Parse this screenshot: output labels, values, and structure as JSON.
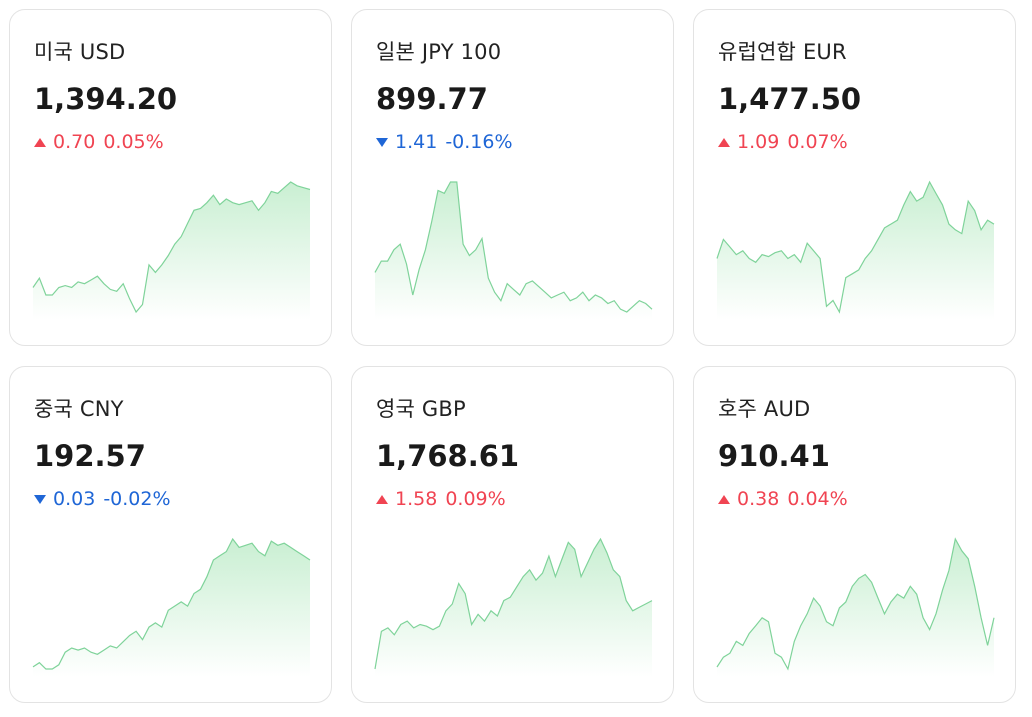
{
  "currencies": [
    {
      "name": "미국 USD",
      "price": "1,394.20",
      "direction": "up",
      "change": "0.70",
      "percent": "0.05%",
      "spark": [
        10,
        15,
        6,
        6,
        10,
        11,
        10,
        13,
        12,
        14,
        16,
        12,
        9,
        8,
        12,
        4,
        -3,
        1,
        22,
        18,
        22,
        27,
        33,
        37,
        44,
        51,
        52,
        55,
        59,
        54,
        57,
        55,
        54,
        55,
        56,
        51,
        55,
        61,
        60,
        63,
        66,
        64,
        63,
        62
      ]
    },
    {
      "name": "일본 JPY 100",
      "price": "899.77",
      "direction": "down",
      "change": "1.41",
      "percent": "-0.16%",
      "spark": [
        22,
        26,
        26,
        30,
        32,
        25,
        14,
        23,
        30,
        40,
        51,
        50,
        54,
        54,
        32,
        28,
        30,
        34,
        20,
        15,
        12,
        18,
        16,
        14,
        18,
        19,
        17,
        15,
        13,
        14,
        15,
        12,
        13,
        15,
        12,
        14,
        13,
        11,
        12,
        9,
        8,
        10,
        12,
        11,
        9
      ]
    },
    {
      "name": "유럽연합 EUR",
      "price": "1,477.50",
      "direction": "up",
      "change": "1.09",
      "percent": "0.07%",
      "spark": [
        30,
        40,
        36,
        32,
        34,
        30,
        28,
        32,
        31,
        33,
        34,
        30,
        32,
        28,
        38,
        34,
        30,
        5,
        8,
        2,
        20,
        22,
        24,
        30,
        34,
        40,
        46,
        48,
        50,
        58,
        65,
        60,
        62,
        70,
        64,
        58,
        48,
        45,
        43,
        60,
        55,
        45,
        50,
        48
      ]
    },
    {
      "name": "중국 CNY",
      "price": "192.57",
      "direction": "down",
      "change": "0.03",
      "percent": "-0.02%",
      "spark": [
        5,
        7,
        4,
        4,
        6,
        12,
        14,
        13,
        14,
        12,
        11,
        13,
        15,
        14,
        17,
        20,
        22,
        18,
        24,
        26,
        24,
        32,
        34,
        36,
        34,
        40,
        42,
        48,
        56,
        58,
        60,
        66,
        62,
        63,
        64,
        60,
        58,
        65,
        63,
        64,
        62,
        60,
        58,
        56
      ]
    },
    {
      "name": "영국 GBP",
      "price": "1,768.61",
      "direction": "up",
      "change": "1.58",
      "percent": "0.09%",
      "spark": [
        2,
        24,
        26,
        22,
        28,
        30,
        26,
        28,
        27,
        25,
        27,
        36,
        40,
        52,
        46,
        28,
        34,
        30,
        36,
        33,
        42,
        44,
        50,
        56,
        60,
        54,
        58,
        68,
        56,
        66,
        76,
        72,
        56,
        64,
        72,
        78,
        70,
        60,
        56,
        42,
        36,
        38,
        40,
        42
      ]
    },
    {
      "name": "호주 AUD",
      "price": "910.41",
      "direction": "up",
      "change": "0.38",
      "percent": "0.04%",
      "spark": [
        15,
        20,
        22,
        28,
        26,
        32,
        36,
        40,
        38,
        22,
        20,
        14,
        28,
        36,
        42,
        50,
        46,
        38,
        36,
        45,
        48,
        56,
        60,
        62,
        58,
        50,
        42,
        48,
        52,
        50,
        56,
        52,
        40,
        34,
        42,
        54,
        64,
        80,
        74,
        70,
        56,
        40,
        26,
        40
      ]
    }
  ],
  "colors": {
    "up": "#f04452",
    "down": "#1f66d6",
    "spark_line": "#7fd39a",
    "spark_fill_top": "#c9efd2",
    "spark_fill_bottom": "#ffffff"
  }
}
